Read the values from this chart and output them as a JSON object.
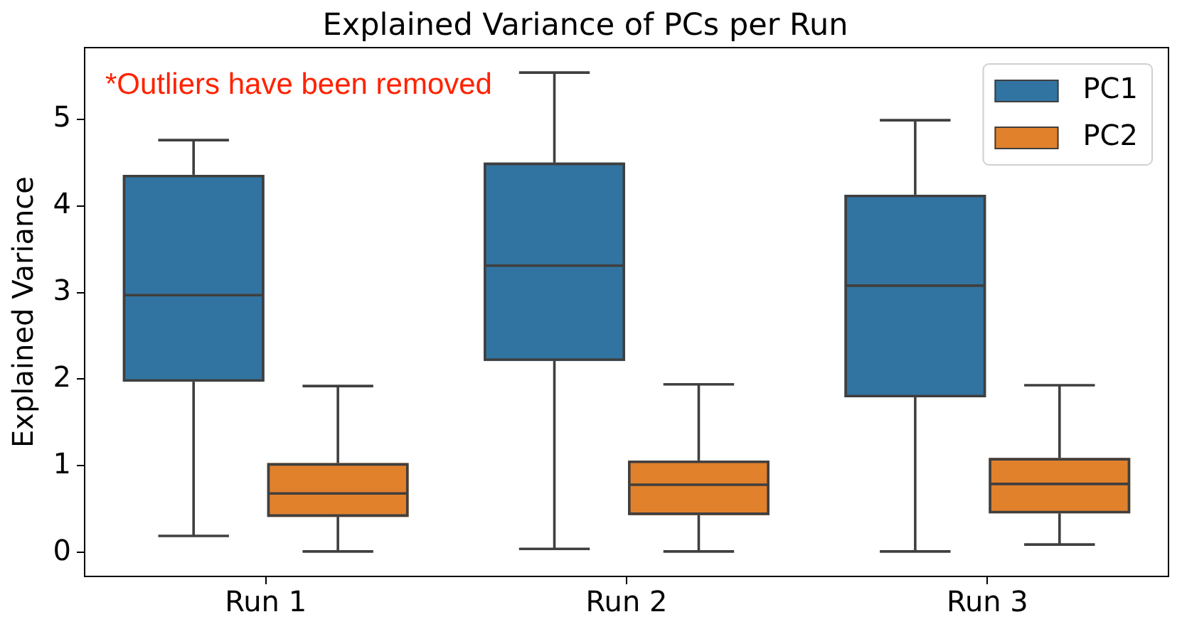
{
  "chart_data": {
    "type": "box",
    "title": "Explained Variance of PCs per Run",
    "ylabel": "Explained Variance",
    "annotations": [
      "*Outliers have been removed"
    ],
    "categories": [
      "Run 1",
      "Run 2",
      "Run 3"
    ],
    "series": [
      {
        "name": "PC1",
        "color": "#3274a1",
        "boxes": [
          {
            "low": 0.19,
            "q1": 1.97,
            "median": 2.97,
            "q3": 4.36,
            "high": 4.76
          },
          {
            "low": 0.04,
            "q1": 2.21,
            "median": 3.31,
            "q3": 4.5,
            "high": 5.54
          },
          {
            "low": 0.01,
            "q1": 1.79,
            "median": 3.08,
            "q3": 4.13,
            "high": 4.99
          }
        ]
      },
      {
        "name": "PC2",
        "color": "#e1812c",
        "boxes": [
          {
            "low": 0.01,
            "q1": 0.41,
            "median": 0.68,
            "q3": 1.03,
            "high": 1.92
          },
          {
            "low": 0.01,
            "q1": 0.43,
            "median": 0.78,
            "q3": 1.06,
            "high": 1.94
          },
          {
            "low": 0.09,
            "q1": 0.45,
            "median": 0.79,
            "q3": 1.09,
            "high": 1.93
          }
        ]
      }
    ],
    "ylim": [
      -0.27,
      5.82
    ],
    "yticks": [
      0,
      1,
      2,
      3,
      4,
      5
    ],
    "grid": false,
    "legend": "top right"
  }
}
